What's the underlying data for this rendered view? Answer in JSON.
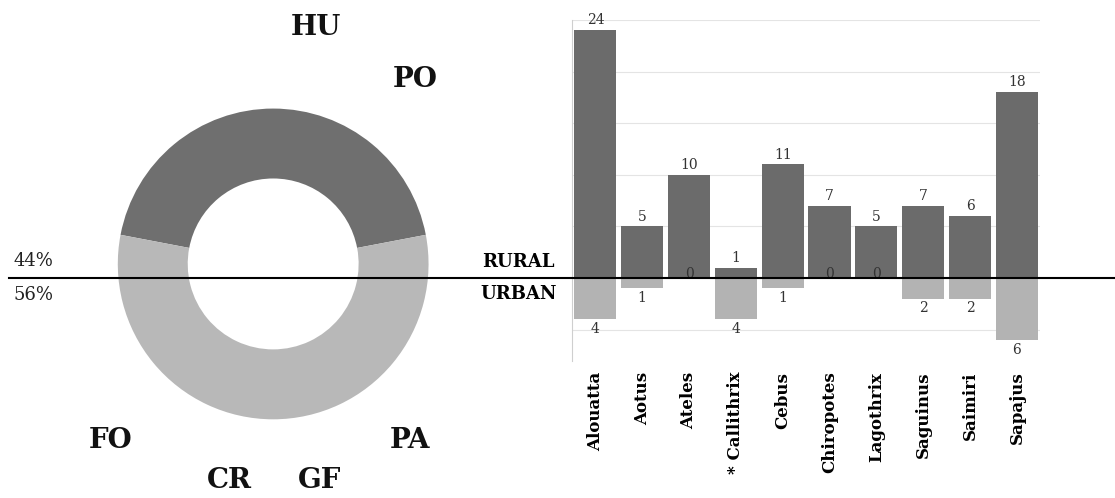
{
  "chart_data": [
    {
      "type": "pie",
      "values": [
        44,
        56
      ],
      "value_labels": [
        "44%",
        "56%"
      ],
      "colors": [
        "#6f6f6f",
        "#b8b8b8"
      ],
      "annotations": [
        "HU",
        "PO",
        "FO",
        "CR",
        "GF",
        "PA"
      ]
    },
    {
      "type": "bar",
      "categories": [
        "Alouatta",
        "Aotus",
        "Ateles",
        "* Callithrix",
        "Cebus",
        "Chiropotes",
        "Lagothrix",
        "Saguinus",
        "Saimiri",
        "Sapajus"
      ],
      "series": [
        {
          "name": "RURAL",
          "color": "#6b6b6b",
          "values": [
            24,
            5,
            10,
            1,
            11,
            7,
            5,
            7,
            6,
            18
          ]
        },
        {
          "name": "URBAN",
          "color": "#b3b3b3",
          "values": [
            4,
            1,
            0,
            4,
            1,
            0,
            0,
            2,
            2,
            6
          ],
          "axis": "y2"
        }
      ],
      "ylim": [
        0,
        25
      ],
      "yticks": [
        0,
        5,
        10,
        15,
        20,
        25
      ],
      "y2lim": [
        0,
        8
      ],
      "y2ticks": [
        0,
        5
      ],
      "grid": true,
      "data_labels": true,
      "tick_labels": "x"
    }
  ]
}
